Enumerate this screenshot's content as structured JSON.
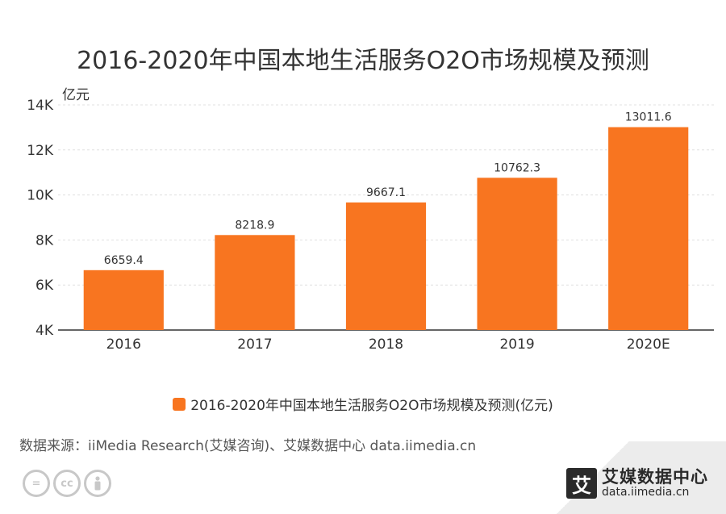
{
  "title": "2016-2020年中国本地生活服务O2O市场规模及预测",
  "unit_label": "亿元",
  "legend_label": "2016-2020年中国本地生活服务O2O市场规模及预测(亿元)",
  "source_text": "数据来源：iiMedia Research(艾媒咨询)、艾媒数据中心 data.iimedia.cn",
  "brand": {
    "logo_char": "艾",
    "name": "艾媒数据中心",
    "url": "data.iimedia.cn"
  },
  "license_icons": [
    "=",
    "cc",
    "person"
  ],
  "colors": {
    "bar": "#f87520",
    "grid": "#e0e0e0",
    "axis": "#333333",
    "text": "#333333"
  },
  "chart_data": {
    "type": "bar",
    "title": "2016-2020年中国本地生活服务O2O市场规模及预测",
    "ylabel": "亿元",
    "xlabel": "",
    "categories": [
      "2016",
      "2017",
      "2018",
      "2019",
      "2020E"
    ],
    "series": [
      {
        "name": "2016-2020年中国本地生活服务O2O市场规模及预测(亿元)",
        "values": [
          6659.4,
          8218.9,
          9667.1,
          10762.3,
          13011.6
        ],
        "labels": [
          "6659.4",
          "8218.9",
          "9667.1",
          "10762.3",
          "13011.6"
        ]
      }
    ],
    "ylim": [
      4000,
      14000
    ],
    "yticks": [
      4000,
      6000,
      8000,
      10000,
      12000,
      14000
    ],
    "ytick_labels": [
      "4K",
      "6K",
      "8K",
      "10K",
      "12K",
      "14K"
    ],
    "grid": true,
    "legend_position": "bottom"
  }
}
